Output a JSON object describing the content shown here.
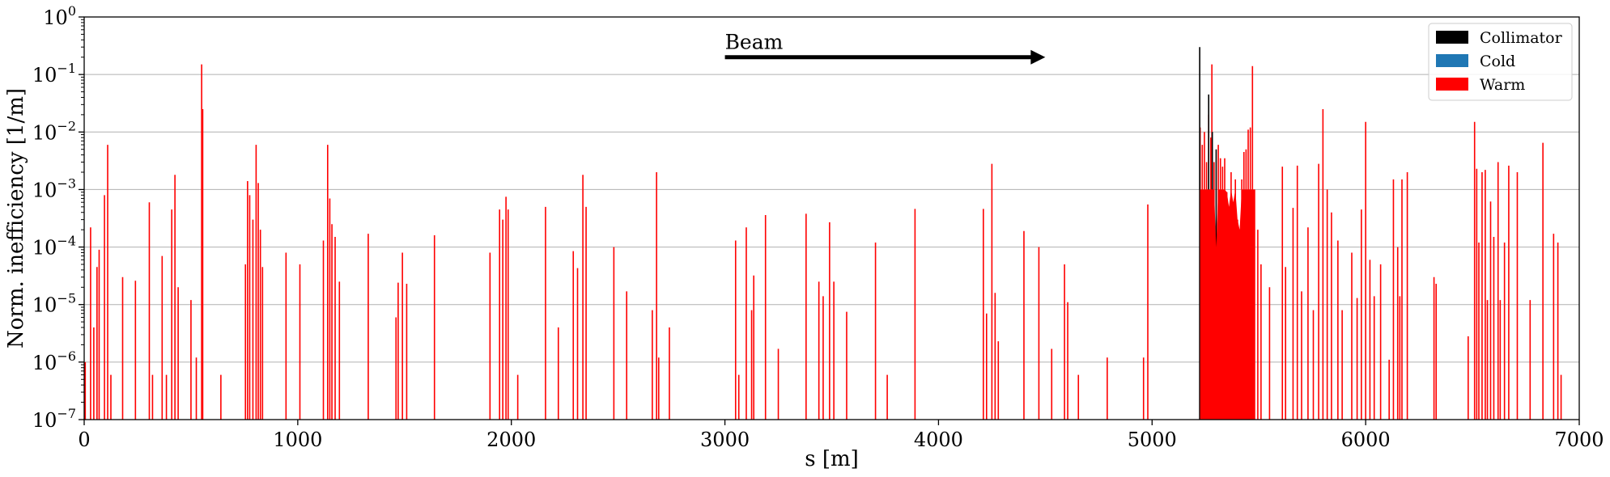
{
  "chart_data": {
    "type": "bar",
    "title": "",
    "xlabel": "s [m]",
    "ylabel": "Norm. inefficiency [1/m]",
    "xlim": [
      0,
      7000
    ],
    "ylim": [
      1e-07,
      1
    ],
    "yscale": "log",
    "grid": "horizontal major gridlines",
    "x_ticks": [
      "0",
      "1000",
      "2000",
      "3000",
      "4000",
      "5000",
      "6000",
      "7000"
    ],
    "y_ticks": [
      {
        "base": "10",
        "exp": "−7",
        "value": 1e-07
      },
      {
        "base": "10",
        "exp": "−6",
        "value": 1e-06
      },
      {
        "base": "10",
        "exp": "−5",
        "value": 1e-05
      },
      {
        "base": "10",
        "exp": "−4",
        "value": 0.0001
      },
      {
        "base": "10",
        "exp": "−3",
        "value": 0.001
      },
      {
        "base": "10",
        "exp": "−2",
        "value": 0.01
      },
      {
        "base": "10",
        "exp": "−1",
        "value": 0.1
      },
      {
        "base": "10",
        "exp": "0",
        "value": 1
      }
    ],
    "legend_position": "top-right",
    "legend": [
      {
        "label": "Collimator",
        "color": "#000000"
      },
      {
        "label": "Cold",
        "color": "#1f77b4"
      },
      {
        "label": "Warm",
        "color": "#ff0000"
      }
    ],
    "annotation": {
      "text": "Beam",
      "arrow_from_x": 3000,
      "arrow_to_x": 4500,
      "arrow_y": 0.2
    },
    "series": [
      {
        "name": "Collimator",
        "color": "#000000",
        "points": [
          [
            5223,
            0.3
          ],
          [
            5265,
            0.045
          ],
          [
            5282,
            0.01
          ],
          [
            5300,
            0.005
          ]
        ]
      },
      {
        "name": "Cold",
        "color": "#1f77b4",
        "points": []
      },
      {
        "name": "Warm",
        "color": "#ff0000",
        "points": [
          [
            5,
            1e-06
          ],
          [
            30,
            0.00022
          ],
          [
            45,
            4e-06
          ],
          [
            60,
            4.5e-05
          ],
          [
            70,
            9e-05
          ],
          [
            95,
            0.0008
          ],
          [
            110,
            0.006
          ],
          [
            125,
            6e-07
          ],
          [
            180,
            3e-05
          ],
          [
            240,
            2.6e-05
          ],
          [
            305,
            0.0006
          ],
          [
            320,
            6e-07
          ],
          [
            365,
            7e-05
          ],
          [
            385,
            6e-07
          ],
          [
            410,
            0.00045
          ],
          [
            425,
            0.0018
          ],
          [
            440,
            2e-05
          ],
          [
            500,
            1.2e-05
          ],
          [
            525,
            1.2e-06
          ],
          [
            550,
            0.15
          ],
          [
            555,
            0.025
          ],
          [
            640,
            6e-07
          ],
          [
            755,
            5e-05
          ],
          [
            765,
            0.0014
          ],
          [
            775,
            0.0008
          ],
          [
            790,
            0.0003
          ],
          [
            805,
            0.006
          ],
          [
            815,
            0.0013
          ],
          [
            825,
            0.0002
          ],
          [
            835,
            4.5e-05
          ],
          [
            945,
            8e-05
          ],
          [
            1010,
            5e-05
          ],
          [
            1120,
            0.00013
          ],
          [
            1140,
            0.006
          ],
          [
            1150,
            0.0007
          ],
          [
            1160,
            0.00025
          ],
          [
            1175,
            0.00015
          ],
          [
            1195,
            2.5e-05
          ],
          [
            1330,
            0.00017
          ],
          [
            1460,
            6e-06
          ],
          [
            1470,
            2.4e-05
          ],
          [
            1490,
            8e-05
          ],
          [
            1510,
            2.3e-05
          ],
          [
            1640,
            0.00016
          ],
          [
            1900,
            8e-05
          ],
          [
            1945,
            0.00045
          ],
          [
            1960,
            0.0003
          ],
          [
            1975,
            0.00075
          ],
          [
            1985,
            0.00045
          ],
          [
            2030,
            6e-07
          ],
          [
            2160,
            0.0005
          ],
          [
            2220,
            4e-06
          ],
          [
            2290,
            8.5e-05
          ],
          [
            2310,
            4.3e-05
          ],
          [
            2335,
            0.0018
          ],
          [
            2350,
            0.0005
          ],
          [
            2480,
            0.0001
          ],
          [
            2540,
            1.7e-05
          ],
          [
            2660,
            8e-06
          ],
          [
            2680,
            0.002
          ],
          [
            2690,
            1.2e-06
          ],
          [
            2740,
            4e-06
          ],
          [
            3050,
            0.00013
          ],
          [
            3065,
            6e-07
          ],
          [
            3100,
            0.00022
          ],
          [
            3125,
            8e-06
          ],
          [
            3135,
            3.2e-05
          ],
          [
            3190,
            0.00036
          ],
          [
            3250,
            1.7e-06
          ],
          [
            3380,
            0.00038
          ],
          [
            3440,
            2.5e-05
          ],
          [
            3460,
            1.4e-05
          ],
          [
            3490,
            0.00027
          ],
          [
            3510,
            2.5e-05
          ],
          [
            3570,
            7.5e-06
          ],
          [
            3705,
            0.00012
          ],
          [
            3760,
            6e-07
          ],
          [
            3890,
            0.00046
          ],
          [
            4210,
            0.00046
          ],
          [
            4225,
            7e-06
          ],
          [
            4250,
            0.0028
          ],
          [
            4265,
            1.6e-05
          ],
          [
            4280,
            2.3e-06
          ],
          [
            4400,
            0.00019
          ],
          [
            4470,
            0.0001
          ],
          [
            4530,
            1.7e-06
          ],
          [
            4590,
            5e-05
          ],
          [
            4605,
            1.1e-05
          ],
          [
            4655,
            6e-07
          ],
          [
            4790,
            1.2e-06
          ],
          [
            4960,
            1.2e-06
          ],
          [
            4980,
            0.00055
          ],
          [
            5225,
            0.012
          ],
          [
            5235,
            0.006
          ],
          [
            5245,
            0.01
          ],
          [
            5255,
            0.003
          ],
          [
            5265,
            0.02
          ],
          [
            5275,
            0.008
          ],
          [
            5280,
            0.15
          ],
          [
            5290,
            0.003
          ],
          [
            5300,
            0.0001
          ],
          [
            5310,
            0.006
          ],
          [
            5320,
            0.0035
          ],
          [
            5330,
            0.0025
          ],
          [
            5340,
            0.0035
          ],
          [
            5350,
            0.0009
          ],
          [
            5360,
            0.0005
          ],
          [
            5370,
            0.002
          ],
          [
            5380,
            0.0006
          ],
          [
            5390,
            0.0015
          ],
          [
            5400,
            0.0003
          ],
          [
            5410,
            0.0002
          ],
          [
            5420,
            0.0015
          ],
          [
            5430,
            0.0045
          ],
          [
            5440,
            0.005
          ],
          [
            5450,
            0.011
          ],
          [
            5460,
            0.012
          ],
          [
            5470,
            0.14
          ],
          [
            5480,
            0.001
          ],
          [
            5495,
            0.0002
          ],
          [
            5510,
            5e-05
          ],
          [
            5550,
            2e-05
          ],
          [
            5610,
            0.0025
          ],
          [
            5625,
            4.5e-05
          ],
          [
            5660,
            0.00048
          ],
          [
            5680,
            0.0026
          ],
          [
            5700,
            1.7e-05
          ],
          [
            5730,
            0.00022
          ],
          [
            5755,
            8e-06
          ],
          [
            5780,
            0.0028
          ],
          [
            5800,
            0.025
          ],
          [
            5820,
            0.001
          ],
          [
            5840,
            0.0004
          ],
          [
            5870,
            0.00013
          ],
          [
            5890,
            8e-06
          ],
          [
            5935,
            8e-05
          ],
          [
            5960,
            1.3e-05
          ],
          [
            5980,
            0.00045
          ],
          [
            6000,
            0.015
          ],
          [
            6020,
            6e-05
          ],
          [
            6040,
            1.4e-05
          ],
          [
            6070,
            5e-05
          ],
          [
            6110,
            1.1e-06
          ],
          [
            6130,
            0.0015
          ],
          [
            6150,
            0.0001
          ],
          [
            6160,
            1.4e-05
          ],
          [
            6170,
            0.0015
          ],
          [
            6195,
            0.002
          ],
          [
            6320,
            3e-05
          ],
          [
            6330,
            2.3e-05
          ],
          [
            6480,
            2.8e-06
          ],
          [
            6510,
            0.015
          ],
          [
            6520,
            0.0023
          ],
          [
            6530,
            0.00012
          ],
          [
            6545,
            0.002
          ],
          [
            6560,
            0.0022
          ],
          [
            6570,
            1.2e-05
          ],
          [
            6585,
            0.00062
          ],
          [
            6600,
            0.00015
          ],
          [
            6620,
            0.003
          ],
          [
            6630,
            1.2e-05
          ],
          [
            6650,
            0.00012
          ],
          [
            6670,
            0.0026
          ],
          [
            6710,
            0.002
          ],
          [
            6770,
            1.2e-05
          ],
          [
            6830,
            0.0065
          ],
          [
            6880,
            0.00017
          ],
          [
            6900,
            0.00012
          ],
          [
            6915,
            6e-07
          ]
        ]
      }
    ]
  }
}
